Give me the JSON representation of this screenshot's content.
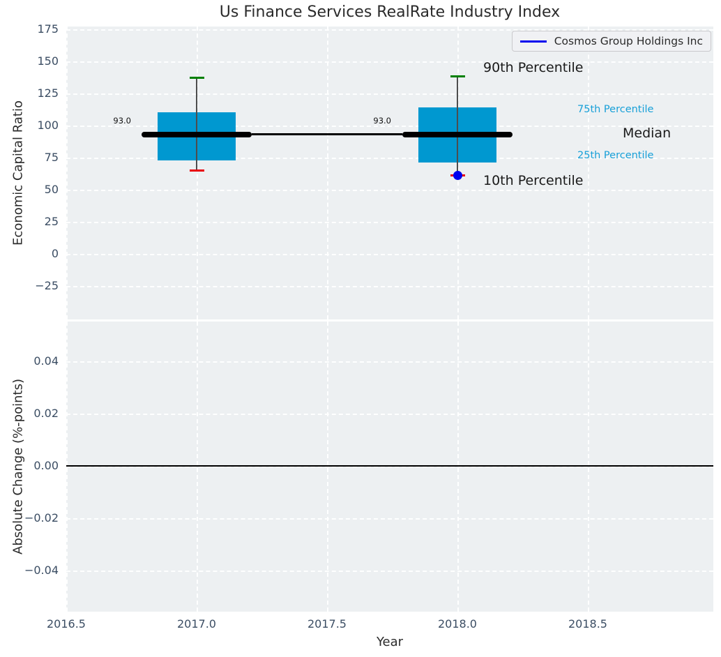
{
  "title": "Us Finance Services RealRate Industry Index",
  "legend": {
    "label": "Cosmos Group Holdings Inc",
    "line_color": "#0000ee"
  },
  "colors": {
    "box_fill": "#0098d0",
    "median": "#000000",
    "p90_cap": "#008000",
    "p10_cap": "#e8000b",
    "whisker": "#4d4d4d",
    "company": "#0000ee",
    "plot_bg": "#edf0f2",
    "grid": "#ffffff",
    "tick_text": "#3b4d63",
    "percentile_text": "#18a0d8"
  },
  "top_chart": {
    "ylabel": "Economic Capital Ratio",
    "ytick_labels": [
      "175",
      "150",
      "125",
      "100",
      "75",
      "50",
      "25",
      "0",
      "−25"
    ],
    "ytick_values": [
      175,
      150,
      125,
      100,
      75,
      50,
      25,
      0,
      -25
    ],
    "annotations": {
      "median_label_2017": "93.0",
      "median_label_2018": "93.0",
      "p90_label": "90th Percentile",
      "p75_label": "75th Percentile",
      "median_label": "Median",
      "p25_label": "25th Percentile",
      "p10_label": "10th Percentile"
    }
  },
  "bottom_chart": {
    "ylabel": "Absolute Change (%-points)",
    "ytick_labels": [
      "0.04",
      "0.02",
      "0.00",
      "−0.02",
      "−0.04"
    ],
    "ytick_values": [
      0.04,
      0.02,
      0,
      -0.02,
      -0.04
    ],
    "xlabel": "Year",
    "xtick_labels": [
      "2016.5",
      "2017.0",
      "2017.5",
      "2018.0",
      "2018.5"
    ],
    "xtick_values": [
      2016.5,
      2017.0,
      2017.5,
      2018.0,
      2018.5
    ]
  },
  "chart_data": [
    {
      "type": "boxplot",
      "title": "Us Finance Services RealRate Industry Index",
      "xlabel": "",
      "ylabel": "Economic Capital Ratio",
      "ylim": [
        -51,
        177
      ],
      "xlim": [
        2016.5,
        2018.99
      ],
      "grid": true,
      "legend_position": "upper right",
      "legend": [
        "Cosmos Group Holdings Inc"
      ],
      "boxes": [
        {
          "x": 2017,
          "p10": 65,
          "p25": 73,
          "median": 93.0,
          "p75": 110,
          "p90": 137
        },
        {
          "x": 2018,
          "p10": 61,
          "p25": 71,
          "median": 93.0,
          "p75": 114,
          "p90": 138
        }
      ],
      "median_series": {
        "name": "Industry Median",
        "x": [
          2017,
          2018
        ],
        "values": [
          93.0,
          93.0
        ],
        "color": "#000000"
      },
      "company_series": {
        "name": "Cosmos Group Holdings Inc",
        "x": [
          2018
        ],
        "values": [
          61
        ],
        "marker": "circle",
        "color": "#0000ee"
      },
      "median_data_labels": [
        "93.0",
        "93.0"
      ]
    },
    {
      "type": "line",
      "xlabel": "Year",
      "ylabel": "Absolute Change (%-points)",
      "ylim": [
        -0.056,
        0.055
      ],
      "xlim": [
        2016.5,
        2018.99
      ],
      "yticks": [
        0.04,
        0.02,
        0.0,
        -0.02,
        -0.04
      ],
      "xticks": [
        2016.5,
        2017.0,
        2017.5,
        2018.0,
        2018.5
      ],
      "grid": true,
      "zero_line": 0.0,
      "series": []
    }
  ]
}
